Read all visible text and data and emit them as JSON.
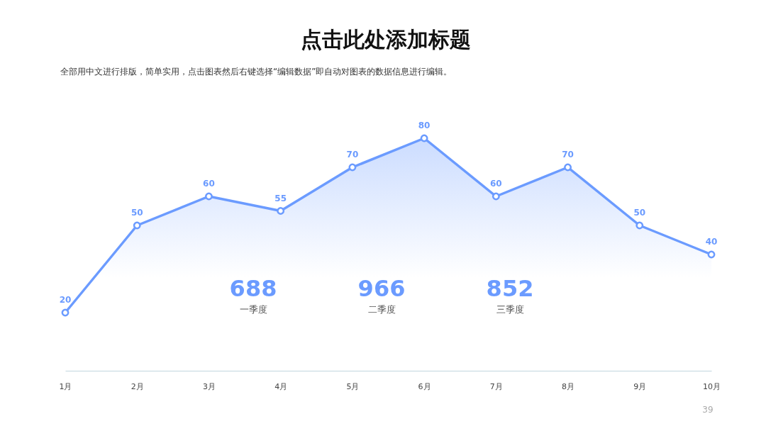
{
  "chart_data": {
    "type": "area",
    "title": "点击此处添加标题",
    "subtitle": "全部用中文进行排版，简单实用，点击图表然后右键选择“编辑数据”即自动对图表的数据信息进行编辑。",
    "categories": [
      "1月",
      "2月",
      "3月",
      "4月",
      "5月",
      "6月",
      "7月",
      "8月",
      "9月",
      "10月"
    ],
    "series": [
      {
        "color": "#6b9bff",
        "values": [
          20,
          50,
          60,
          55,
          70,
          80,
          60,
          70,
          50,
          40
        ]
      }
    ],
    "data_labels": true,
    "marker": "circle",
    "grid": false,
    "tick_labels": "x",
    "annotations": [
      "688",
      "一季度",
      "966",
      "二季度",
      "852",
      "三季度",
      "39"
    ]
  }
}
